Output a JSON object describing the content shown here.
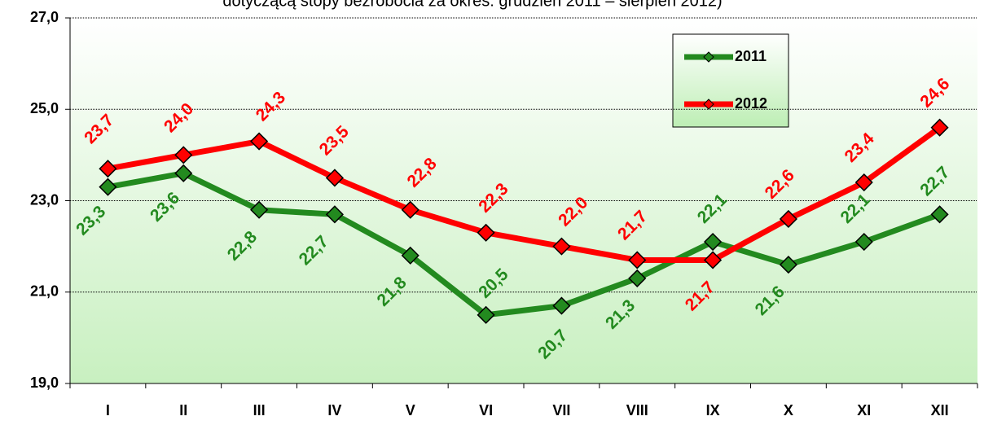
{
  "chart_data": {
    "type": "line",
    "title": "dotyczącą stopy bezrobocia za okres: grudzień 2011 – sierpień 2012)",
    "categories": [
      "I",
      "II",
      "III",
      "IV",
      "V",
      "VI",
      "VII",
      "VIII",
      "IX",
      "X",
      "XI",
      "XII"
    ],
    "series": [
      {
        "name": "2011",
        "color": "#238a1f",
        "values": [
          23.3,
          23.6,
          22.8,
          22.7,
          21.8,
          20.5,
          20.7,
          21.3,
          22.1,
          21.6,
          22.1,
          22.7
        ],
        "value_labels": [
          "23,3",
          "23,6",
          "22,8",
          "22,7",
          "21,8",
          "20,5",
          "20,7",
          "21,3",
          "22,1",
          "21,6",
          "22,1",
          "22,7"
        ]
      },
      {
        "name": "2012",
        "color": "#ff0000",
        "values": [
          23.7,
          24.0,
          24.3,
          23.5,
          22.8,
          22.3,
          22.0,
          21.7,
          21.7,
          22.6,
          23.4,
          24.6
        ],
        "value_labels": [
          "23,7",
          "24,0",
          "24,3",
          "23,5",
          "22,8",
          "22,3",
          "22,0",
          "21,7",
          "21,7",
          "22,6",
          "23,4",
          "24,6"
        ]
      }
    ],
    "ylim": [
      19,
      27
    ],
    "yticks": [
      {
        "value": 19,
        "label": "19,0"
      },
      {
        "value": 21,
        "label": "21,0"
      },
      {
        "value": 23,
        "label": "23,0"
      },
      {
        "value": 25,
        "label": "25,0"
      },
      {
        "value": 27,
        "label": "27,0"
      }
    ],
    "grid": true
  }
}
